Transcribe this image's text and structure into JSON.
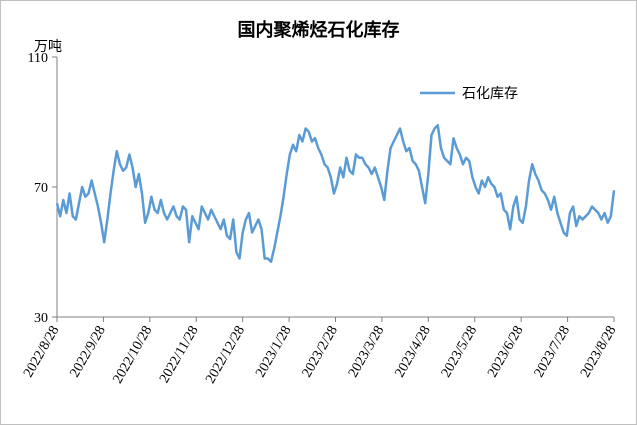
{
  "chart_data": {
    "type": "line",
    "title": "国内聚烯烃石化库存",
    "ylabel": "万吨",
    "ylim": [
      30,
      110
    ],
    "yticks": [
      30,
      70,
      110
    ],
    "grid": false,
    "legend_position": "top-right",
    "xticks": [
      "2022/8/28",
      "2022/9/28",
      "2022/10/28",
      "2022/11/28",
      "2022/12/28",
      "2023/1/28",
      "2023/2/28",
      "2023/3/28",
      "2023/4/28",
      "2023/5/28",
      "2023/6/28",
      "2023/7/28",
      "2023/8/28"
    ],
    "series": [
      {
        "name": "石化库存",
        "color": "#5b9bd5",
        "values": [
          65,
          61,
          66,
          62,
          68,
          61,
          60,
          65,
          70,
          67,
          68,
          72,
          68,
          64,
          59,
          53,
          60,
          68,
          75,
          81,
          77,
          75,
          76,
          80,
          76,
          70,
          74,
          68,
          59,
          62,
          67,
          63,
          62,
          66,
          62,
          60,
          62,
          64,
          61,
          60,
          64,
          63,
          53,
          61,
          59,
          57,
          64,
          62,
          60,
          63,
          61,
          59,
          57,
          60,
          55,
          54,
          60,
          50,
          48,
          56,
          60,
          62,
          56,
          58,
          60,
          57,
          48,
          48,
          47,
          51,
          56,
          61,
          67,
          74,
          80,
          83,
          81,
          86,
          84,
          88,
          87,
          84,
          85,
          82,
          80,
          77,
          76,
          73,
          68,
          71,
          76,
          73,
          79,
          75,
          74,
          80,
          79,
          79,
          77,
          76,
          74,
          76,
          73,
          70,
          66,
          75,
          82,
          84,
          86,
          88,
          84,
          81,
          82,
          78,
          77,
          75,
          70,
          65,
          74,
          86,
          88,
          89,
          82,
          79,
          78,
          77,
          85,
          82,
          80,
          77,
          79,
          78,
          73,
          70,
          68,
          72,
          70,
          73,
          71,
          70,
          67,
          68,
          63,
          62,
          57,
          64,
          67,
          60,
          59,
          64,
          72,
          77,
          74,
          72,
          69,
          68,
          66,
          63,
          67,
          62,
          59,
          56,
          55,
          62,
          64,
          58,
          61,
          60,
          61,
          62,
          64,
          63,
          62,
          60,
          62,
          59,
          61,
          69
        ]
      }
    ]
  }
}
